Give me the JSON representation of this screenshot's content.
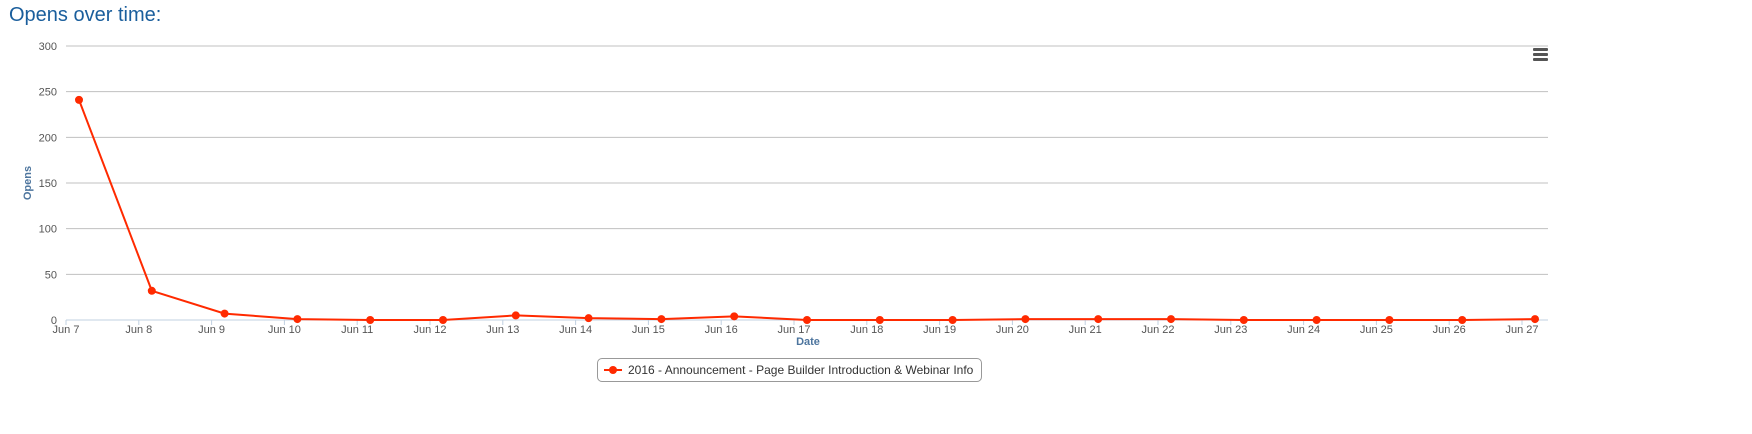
{
  "title": "Opens over time:",
  "chart_data": {
    "type": "line",
    "xlabel": "Date",
    "ylabel": "Opens",
    "ylim": [
      0,
      300
    ],
    "yticks": [
      0,
      50,
      100,
      150,
      200,
      250,
      300
    ],
    "grid": true,
    "legend": "bottom-center",
    "categories": [
      "Jun 7",
      "Jun 8",
      "Jun 9",
      "Jun 10",
      "Jun 11",
      "Jun 12",
      "Jun 13",
      "Jun 14",
      "Jun 15",
      "Jun 16",
      "Jun 17",
      "Jun 18",
      "Jun 19",
      "Jun 20",
      "Jun 21",
      "Jun 22",
      "Jun 23",
      "Jun 24",
      "Jun 25",
      "Jun 26",
      "Jun 27"
    ],
    "series": [
      {
        "name": "2016 - Announcement - Page Builder Introduction & Webinar Info",
        "color": "#ff2a00",
        "values": [
          241,
          32,
          7,
          1,
          0,
          0,
          5,
          2,
          1,
          4,
          0,
          0,
          0,
          1,
          1,
          1,
          0,
          0,
          0,
          0,
          1
        ]
      }
    ]
  },
  "menu_icon": "hamburger-menu-icon"
}
